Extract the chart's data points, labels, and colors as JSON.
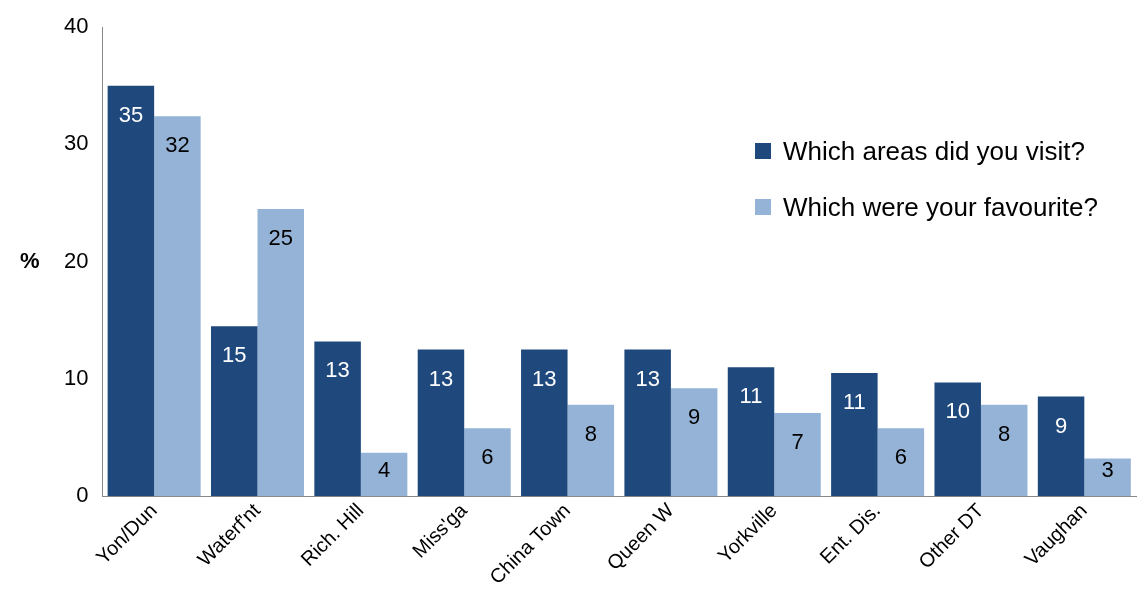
{
  "chart_data": {
    "type": "bar",
    "ylabel": "%",
    "categories": [
      "Yon/Dun",
      "Waterf'nt",
      "Rich. Hill",
      "Miss'ga",
      "China Town",
      "Queen W",
      "Yorkville",
      "Ent. Dis.",
      "Other DT",
      "Vaughan"
    ],
    "series": [
      {
        "name": "Which areas did you visit?",
        "color": "#1f497d",
        "values": [
          35,
          14.5,
          13.2,
          12.5,
          12.5,
          12.5,
          11,
          10.5,
          9.7,
          8.5
        ],
        "value_labels": [
          "35",
          "15",
          "13",
          "13",
          "13",
          "13",
          "11",
          "11",
          "10",
          "9"
        ]
      },
      {
        "name": "Which were your favourite?",
        "color": "#95b3d7",
        "values": [
          32.4,
          24.5,
          3.7,
          5.8,
          7.8,
          9.2,
          7.1,
          5.8,
          7.8,
          3.2
        ],
        "value_labels": [
          "32",
          "25",
          "4",
          "6",
          "8",
          "9",
          "7",
          "6",
          "8",
          "3"
        ]
      }
    ],
    "ylim": [
      0,
      40
    ],
    "yticks": [
      0,
      10,
      20,
      30,
      40
    ],
    "grid": false,
    "legend": "top right"
  }
}
